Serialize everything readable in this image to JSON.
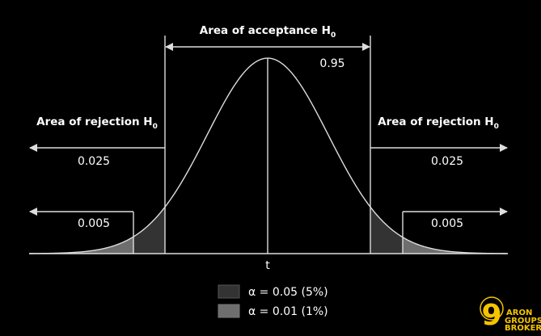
{
  "labels": {
    "acceptance": "Area of acceptance H",
    "acceptance_sub": "0",
    "rejection_left": "Area of rejection H",
    "rejection_left_sub": "0",
    "rejection_right": "Area of rejection H",
    "rejection_right_sub": "0",
    "p_accept": "0.95",
    "p_left_05": "0.025",
    "p_left_01": "0.005",
    "p_right_05": "0.025",
    "p_right_01": "0.005",
    "axis": "t"
  },
  "legend": [
    {
      "label": "α = 0.05 (5%)",
      "color": "#333333"
    },
    {
      "label": "α = 0.01 (1%)",
      "color": "#6e6e6e"
    }
  ],
  "logo": {
    "digit": "9",
    "line1": "ARON",
    "line2": "GROUPS",
    "line3": "BROKER",
    "color": "#f5c400"
  }
}
